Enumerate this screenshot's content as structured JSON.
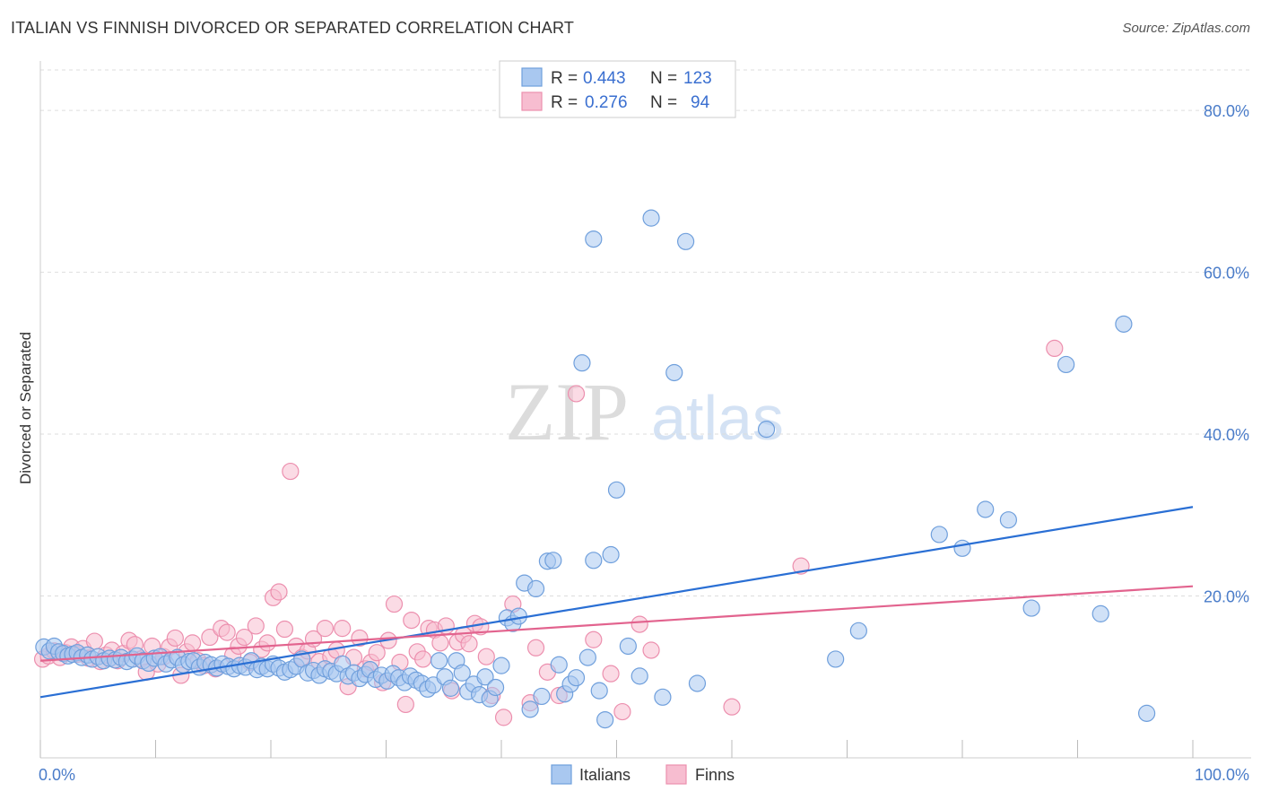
{
  "title": "ITALIAN VS FINNISH DIVORCED OR SEPARATED CORRELATION CHART",
  "source": "Source: ZipAtlas.com",
  "watermark": {
    "zip": "ZIP",
    "atlas": "atlas"
  },
  "legend_top": [
    {
      "r_label": "R = ",
      "r_value": "0.443",
      "n_label": "N = ",
      "n_value": "123"
    },
    {
      "r_label": "R = ",
      "r_value": "0.276",
      "n_label": "N = ",
      "n_value": "94"
    }
  ],
  "legend_bottom": [
    "Italians",
    "Finns"
  ],
  "colors": {
    "italians_fill": "#a9c8f0",
    "italians_stroke": "#6f9fdc",
    "italians_line": "#2a6fd4",
    "finns_fill": "#f7bdd0",
    "finns_stroke": "#ec8fae",
    "finns_line": "#e2638e",
    "grid": "#dddddd",
    "tick_label": "#4a7cc9"
  },
  "chart_data": {
    "type": "scatter",
    "title": "ITALIAN VS FINNISH DIVORCED OR SEPARATED CORRELATION CHART",
    "xlabel": "",
    "ylabel": "Divorced or Separated",
    "xlim": [
      0,
      100
    ],
    "ylim": [
      0,
      85
    ],
    "x_tick_labels": [
      "0.0%",
      "100.0%"
    ],
    "y_ticks": [
      20,
      40,
      60,
      80
    ],
    "y_tick_labels": [
      "20.0%",
      "40.0%",
      "60.0%",
      "80.0%"
    ],
    "grid": true,
    "legend_position": "top-center",
    "series": [
      {
        "name": "Italians",
        "r": 0.443,
        "n": 123,
        "trend": {
          "x": [
            0,
            100
          ],
          "y": [
            7.5,
            31.0
          ]
        },
        "points": [
          [
            0.3,
            13.7
          ],
          [
            0.8,
            13.2
          ],
          [
            1.2,
            13.8
          ],
          [
            1.6,
            13.1
          ],
          [
            2.0,
            12.9
          ],
          [
            2.4,
            12.6
          ],
          [
            2.8,
            12.8
          ],
          [
            3.2,
            13.0
          ],
          [
            3.6,
            12.4
          ],
          [
            4.1,
            12.7
          ],
          [
            4.5,
            12.2
          ],
          [
            5.0,
            12.5
          ],
          [
            5.5,
            12.0
          ],
          [
            6.0,
            12.3
          ],
          [
            6.5,
            12.1
          ],
          [
            7.0,
            12.4
          ],
          [
            7.5,
            11.9
          ],
          [
            8.0,
            12.2
          ],
          [
            8.4,
            12.6
          ],
          [
            8.9,
            12.0
          ],
          [
            9.4,
            11.7
          ],
          [
            9.9,
            12.3
          ],
          [
            10.4,
            12.5
          ],
          [
            10.9,
            11.6
          ],
          [
            11.4,
            12.1
          ],
          [
            11.9,
            12.4
          ],
          [
            12.4,
            11.5
          ],
          [
            12.9,
            11.9
          ],
          [
            13.3,
            12.0
          ],
          [
            13.8,
            11.2
          ],
          [
            14.3,
            11.8
          ],
          [
            14.8,
            11.5
          ],
          [
            15.3,
            11.1
          ],
          [
            15.8,
            11.6
          ],
          [
            16.3,
            11.3
          ],
          [
            16.8,
            11.0
          ],
          [
            17.3,
            11.4
          ],
          [
            17.8,
            11.2
          ],
          [
            18.3,
            12.0
          ],
          [
            18.8,
            10.9
          ],
          [
            19.2,
            11.3
          ],
          [
            19.7,
            11.0
          ],
          [
            20.2,
            11.6
          ],
          [
            20.7,
            11.1
          ],
          [
            21.2,
            10.6
          ],
          [
            21.7,
            10.9
          ],
          [
            22.2,
            11.3
          ],
          [
            22.7,
            12.2
          ],
          [
            23.2,
            10.5
          ],
          [
            23.7,
            10.8
          ],
          [
            24.2,
            10.2
          ],
          [
            24.7,
            11.0
          ],
          [
            25.2,
            10.7
          ],
          [
            25.7,
            10.4
          ],
          [
            26.2,
            11.6
          ],
          [
            26.7,
            10.1
          ],
          [
            27.2,
            10.5
          ],
          [
            27.7,
            9.8
          ],
          [
            28.2,
            10.3
          ],
          [
            28.6,
            10.9
          ],
          [
            29.1,
            9.7
          ],
          [
            29.6,
            10.2
          ],
          [
            30.1,
            9.5
          ],
          [
            30.6,
            10.4
          ],
          [
            31.1,
            9.9
          ],
          [
            31.6,
            9.3
          ],
          [
            32.1,
            10.1
          ],
          [
            32.6,
            9.6
          ],
          [
            33.1,
            9.2
          ],
          [
            33.6,
            8.5
          ],
          [
            34.1,
            9.0
          ],
          [
            34.6,
            12.0
          ],
          [
            35.1,
            10.0
          ],
          [
            35.6,
            8.6
          ],
          [
            36.1,
            12.0
          ],
          [
            36.6,
            10.5
          ],
          [
            37.1,
            8.2
          ],
          [
            37.6,
            9.1
          ],
          [
            38.1,
            7.8
          ],
          [
            38.6,
            10.0
          ],
          [
            39.0,
            7.3
          ],
          [
            39.5,
            8.7
          ],
          [
            40.0,
            11.4
          ],
          [
            40.5,
            17.3
          ],
          [
            41.0,
            16.6
          ],
          [
            41.5,
            17.5
          ],
          [
            42.0,
            21.6
          ],
          [
            42.5,
            6.0
          ],
          [
            43.0,
            20.9
          ],
          [
            43.5,
            7.6
          ],
          [
            44.0,
            24.3
          ],
          [
            44.5,
            24.4
          ],
          [
            45.0,
            11.5
          ],
          [
            45.5,
            7.9
          ],
          [
            46.0,
            9.1
          ],
          [
            46.5,
            9.9
          ],
          [
            47.0,
            48.8
          ],
          [
            47.5,
            12.4
          ],
          [
            48.0,
            24.4
          ],
          [
            48.5,
            8.3
          ],
          [
            49.0,
            4.7
          ],
          [
            49.5,
            25.1
          ],
          [
            50.0,
            33.1
          ],
          [
            51.0,
            13.8
          ],
          [
            52.0,
            10.1
          ],
          [
            53.0,
            66.7
          ],
          [
            54.0,
            7.5
          ],
          [
            55.0,
            47.6
          ],
          [
            56.0,
            63.8
          ],
          [
            57.0,
            9.2
          ],
          [
            48.0,
            64.1
          ],
          [
            63.0,
            40.6
          ],
          [
            69.0,
            12.2
          ],
          [
            71.0,
            15.7
          ],
          [
            78.0,
            27.6
          ],
          [
            80.0,
            25.9
          ],
          [
            82.0,
            30.7
          ],
          [
            84.0,
            29.4
          ],
          [
            86.0,
            18.5
          ],
          [
            89.0,
            48.6
          ],
          [
            92.0,
            17.8
          ],
          [
            94.0,
            53.6
          ],
          [
            96.0,
            5.5
          ]
        ]
      },
      {
        "name": "Finns",
        "r": 0.276,
        "n": 94,
        "trend": {
          "x": [
            0,
            100
          ],
          "y": [
            12.0,
            21.2
          ]
        },
        "points": [
          [
            0.2,
            12.2
          ],
          [
            0.7,
            12.6
          ],
          [
            1.2,
            13.2
          ],
          [
            1.7,
            12.4
          ],
          [
            2.2,
            13.0
          ],
          [
            2.7,
            13.7
          ],
          [
            3.2,
            12.8
          ],
          [
            3.7,
            13.5
          ],
          [
            4.2,
            12.3
          ],
          [
            4.7,
            14.4
          ],
          [
            5.2,
            11.9
          ],
          [
            5.7,
            12.7
          ],
          [
            6.2,
            13.3
          ],
          [
            6.7,
            12.0
          ],
          [
            7.2,
            12.9
          ],
          [
            7.7,
            14.5
          ],
          [
            8.2,
            14.0
          ],
          [
            8.7,
            12.2
          ],
          [
            9.2,
            10.6
          ],
          [
            9.7,
            13.8
          ],
          [
            10.2,
            11.6
          ],
          [
            10.7,
            12.5
          ],
          [
            11.2,
            13.7
          ],
          [
            11.7,
            14.8
          ],
          [
            12.2,
            10.2
          ],
          [
            12.7,
            13.1
          ],
          [
            13.2,
            14.2
          ],
          [
            13.7,
            12.0
          ],
          [
            14.2,
            11.4
          ],
          [
            14.7,
            14.9
          ],
          [
            15.2,
            11.0
          ],
          [
            15.7,
            16.0
          ],
          [
            16.2,
            15.5
          ],
          [
            16.7,
            12.7
          ],
          [
            17.2,
            13.8
          ],
          [
            17.7,
            14.9
          ],
          [
            18.2,
            11.8
          ],
          [
            18.7,
            16.3
          ],
          [
            19.2,
            13.4
          ],
          [
            19.7,
            14.2
          ],
          [
            20.2,
            19.8
          ],
          [
            20.7,
            20.5
          ],
          [
            21.2,
            15.9
          ],
          [
            21.7,
            35.4
          ],
          [
            22.2,
            13.8
          ],
          [
            22.7,
            12.4
          ],
          [
            23.2,
            13.2
          ],
          [
            23.7,
            14.7
          ],
          [
            24.2,
            11.9
          ],
          [
            24.7,
            16.0
          ],
          [
            25.2,
            12.5
          ],
          [
            25.7,
            13.3
          ],
          [
            26.2,
            16.0
          ],
          [
            26.7,
            8.8
          ],
          [
            27.2,
            12.4
          ],
          [
            27.7,
            14.8
          ],
          [
            28.2,
            11.0
          ],
          [
            28.7,
            11.8
          ],
          [
            29.2,
            13.0
          ],
          [
            29.7,
            9.3
          ],
          [
            30.2,
            14.5
          ],
          [
            30.7,
            19.0
          ],
          [
            31.2,
            11.8
          ],
          [
            31.7,
            6.6
          ],
          [
            32.2,
            17.0
          ],
          [
            32.7,
            13.1
          ],
          [
            33.2,
            12.2
          ],
          [
            33.7,
            16.0
          ],
          [
            34.2,
            15.8
          ],
          [
            34.7,
            14.2
          ],
          [
            35.2,
            16.3
          ],
          [
            35.7,
            8.3
          ],
          [
            36.2,
            14.3
          ],
          [
            36.7,
            15.2
          ],
          [
            37.2,
            14.1
          ],
          [
            37.7,
            16.6
          ],
          [
            38.2,
            16.2
          ],
          [
            38.7,
            12.5
          ],
          [
            39.2,
            7.7
          ],
          [
            40.2,
            5.0
          ],
          [
            41.0,
            19.0
          ],
          [
            42.5,
            6.8
          ],
          [
            43.0,
            13.6
          ],
          [
            44.0,
            10.6
          ],
          [
            45.0,
            7.7
          ],
          [
            46.5,
            45.0
          ],
          [
            48.0,
            14.6
          ],
          [
            49.5,
            10.4
          ],
          [
            50.5,
            5.7
          ],
          [
            52.0,
            16.5
          ],
          [
            53.0,
            13.3
          ],
          [
            60.0,
            6.3
          ],
          [
            66.0,
            23.7
          ],
          [
            88.0,
            50.6
          ]
        ]
      }
    ]
  }
}
